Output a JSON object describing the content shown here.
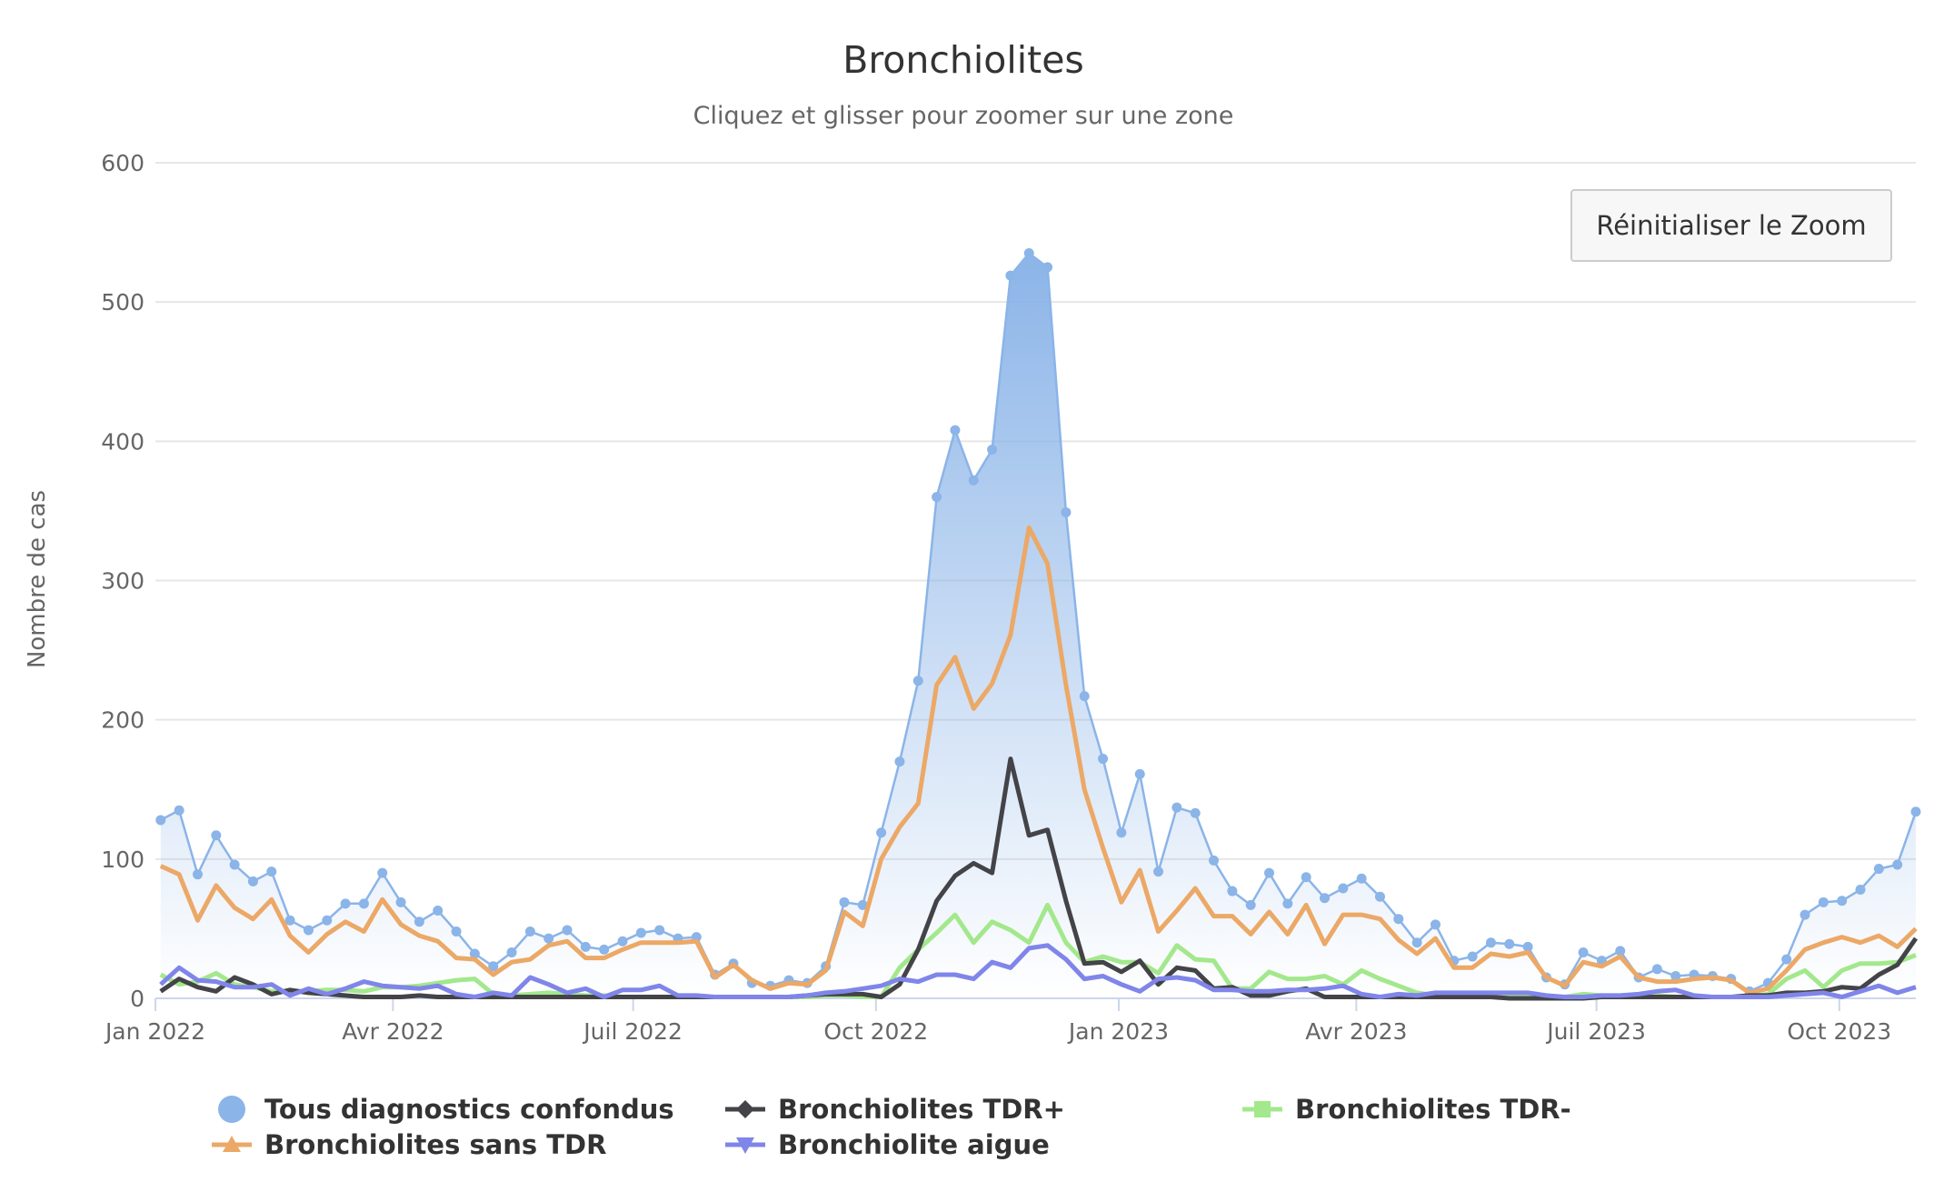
{
  "chart_data": {
    "type": "area-line",
    "title": "Bronchiolites",
    "subtitle": "Cliquez et glisser pour zoomer sur une zone",
    "ylabel": "Nombre de cas",
    "xlabel": "",
    "ylim": [
      0,
      600
    ],
    "yticks": [
      0,
      100,
      200,
      300,
      400,
      500,
      600
    ],
    "xticks": [
      {
        "date": "2022-01-01",
        "label": "Jan 2022"
      },
      {
        "date": "2022-04-01",
        "label": "Avr 2022"
      },
      {
        "date": "2022-07-01",
        "label": "Juil 2022"
      },
      {
        "date": "2022-10-01",
        "label": "Oct 2022"
      },
      {
        "date": "2023-01-01",
        "label": "Jan 2023"
      },
      {
        "date": "2023-04-01",
        "label": "Avr 2023"
      },
      {
        "date": "2023-07-01",
        "label": "Juil 2023"
      },
      {
        "date": "2023-10-01",
        "label": "Oct 2023"
      }
    ],
    "x_start": "2022-01-03",
    "x_interval": "1 week",
    "grid": true,
    "legend_position": "bottom",
    "series": [
      {
        "name": "Tous diagnostics confondus",
        "color": "#8bb4e8",
        "marker": "circle",
        "kind": "area",
        "values": [
          128,
          135,
          89,
          117,
          96,
          84,
          91,
          56,
          49,
          56,
          68,
          68,
          90,
          69,
          55,
          63,
          48,
          32,
          23,
          33,
          48,
          43,
          49,
          37,
          35,
          41,
          47,
          49,
          43,
          44,
          17,
          25,
          11,
          9,
          13,
          11,
          23,
          69,
          67,
          119,
          170,
          228,
          360,
          408,
          372,
          394,
          519,
          535,
          525,
          349,
          217,
          172,
          119,
          161,
          91,
          137,
          133,
          99,
          77,
          67,
          90,
          68,
          87,
          72,
          79,
          86,
          73,
          57,
          40,
          53,
          27,
          30,
          40,
          39,
          37,
          15,
          10,
          33,
          27,
          34,
          15,
          21,
          16,
          17,
          16,
          14,
          5,
          11,
          28,
          60,
          69,
          70,
          78,
          93,
          96,
          134
        ]
      },
      {
        "name": "Bronchiolites sans TDR",
        "color": "#eca866",
        "marker": "triangle",
        "kind": "line",
        "values": [
          95,
          89,
          56,
          81,
          65,
          57,
          71,
          45,
          33,
          46,
          55,
          48,
          71,
          53,
          45,
          41,
          29,
          28,
          17,
          26,
          28,
          38,
          41,
          29,
          29,
          35,
          40,
          40,
          40,
          41,
          15,
          24,
          13,
          7,
          11,
          10,
          20,
          62,
          52,
          100,
          123,
          140,
          225,
          245,
          208,
          226,
          261,
          338,
          312,
          225,
          150,
          108,
          69,
          92,
          48,
          63,
          79,
          59,
          59,
          46,
          62,
          46,
          67,
          39,
          60,
          60,
          57,
          42,
          32,
          43,
          22,
          22,
          32,
          30,
          33,
          15,
          9,
          26,
          23,
          30,
          15,
          12,
          12,
          14,
          15,
          13,
          4,
          7,
          20,
          35,
          40,
          44,
          40,
          45,
          37,
          50
        ]
      },
      {
        "name": "Bronchiolites TDR+",
        "color": "#434348",
        "marker": "diamond",
        "kind": "line",
        "values": [
          5,
          14,
          8,
          5,
          15,
          10,
          3,
          6,
          4,
          3,
          2,
          1,
          1,
          1,
          2,
          1,
          1,
          1,
          1,
          1,
          1,
          1,
          1,
          1,
          1,
          1,
          1,
          1,
          1,
          1,
          1,
          1,
          1,
          1,
          1,
          2,
          3,
          3,
          3,
          1,
          10,
          35,
          70,
          88,
          97,
          90,
          172,
          117,
          121,
          70,
          25,
          26,
          19,
          27,
          10,
          22,
          20,
          7,
          8,
          2,
          2,
          5,
          7,
          1,
          1,
          1,
          1,
          1,
          1,
          1,
          1,
          1,
          1,
          0,
          0,
          0,
          0,
          0,
          1,
          1,
          1,
          1,
          1,
          1,
          1,
          1,
          2,
          2,
          4,
          4,
          5,
          8,
          7,
          17,
          24,
          43
        ]
      },
      {
        "name": "Bronchiolites TDR-",
        "color": "#a3e88c",
        "marker": "square",
        "kind": "line",
        "values": [
          17,
          10,
          12,
          18,
          10,
          8,
          5,
          5,
          5,
          6,
          6,
          5,
          8,
          8,
          9,
          11,
          13,
          14,
          3,
          2,
          3,
          4,
          3,
          2,
          2,
          1,
          1,
          1,
          1,
          1,
          1,
          1,
          1,
          1,
          1,
          1,
          2,
          2,
          1,
          1,
          22,
          35,
          47,
          60,
          40,
          55,
          49,
          40,
          67,
          40,
          26,
          30,
          26,
          26,
          18,
          38,
          28,
          27,
          7,
          7,
          19,
          14,
          14,
          16,
          10,
          20,
          14,
          9,
          4,
          2,
          2,
          1,
          1,
          1,
          2,
          1,
          1,
          3,
          2,
          1,
          2,
          2,
          1,
          1,
          1,
          1,
          1,
          3,
          14,
          20,
          8,
          20,
          25,
          25,
          26,
          31
        ]
      },
      {
        "name": "Bronchiolite aigue",
        "color": "#8085e9",
        "marker": "triangle-down",
        "kind": "line",
        "values": [
          10,
          22,
          13,
          12,
          8,
          8,
          10,
          2,
          7,
          3,
          7,
          12,
          9,
          8,
          7,
          9,
          3,
          1,
          4,
          2,
          15,
          10,
          4,
          7,
          1,
          6,
          6,
          9,
          2,
          2,
          1,
          1,
          1,
          1,
          1,
          2,
          4,
          5,
          7,
          9,
          14,
          12,
          17,
          17,
          14,
          26,
          22,
          36,
          38,
          28,
          14,
          16,
          10,
          5,
          14,
          15,
          13,
          6,
          6,
          5,
          5,
          6,
          6,
          7,
          9,
          3,
          1,
          3,
          2,
          4,
          4,
          4,
          4,
          4,
          4,
          2,
          1,
          1,
          2,
          2,
          3,
          5,
          6,
          2,
          1,
          1,
          1,
          1,
          2,
          3,
          4,
          1,
          5,
          9,
          4,
          8
        ]
      }
    ]
  },
  "controls": {
    "reset_zoom_label": "Réinitialiser le Zoom"
  }
}
